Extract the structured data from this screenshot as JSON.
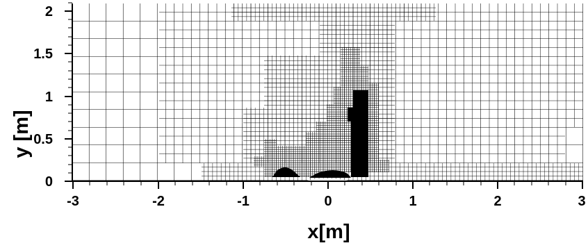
{
  "chart_data": {
    "type": "mesh",
    "xlabel": "x[m]",
    "ylabel": "y [m]",
    "xlim": [
      -3,
      3
    ],
    "ylim": [
      0,
      2.1
    ],
    "x_ticks": [
      "-3",
      "-2",
      "-1",
      "0",
      "1",
      "2",
      "3"
    ],
    "y_ticks": [
      "0",
      "0.5",
      "1",
      "1.5",
      "2"
    ],
    "grid": "adaptive cartesian mesh, refinement concentrated near x = 0 to 0.6 m and near y = 0"
  }
}
